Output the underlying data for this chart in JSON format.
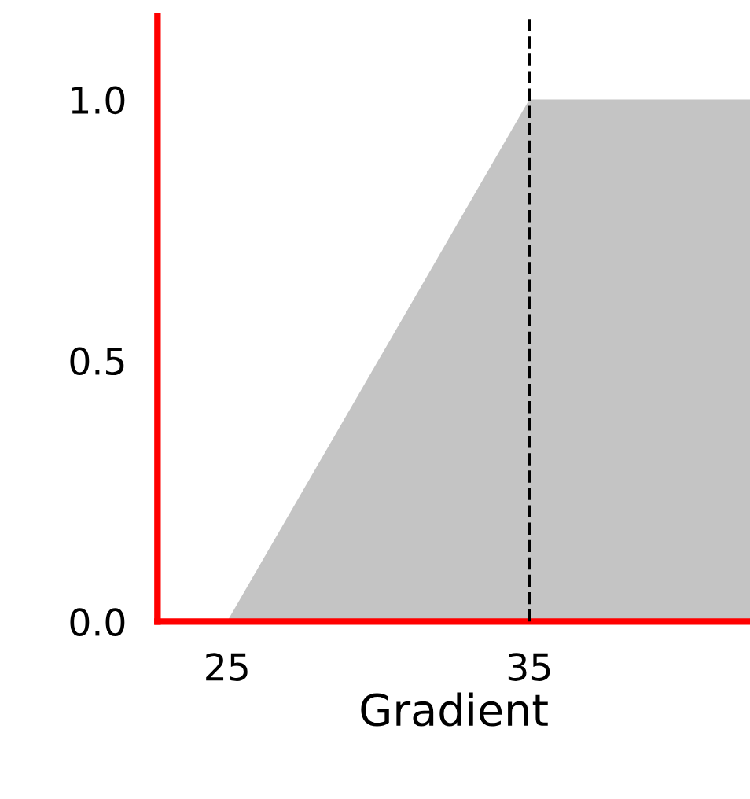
{
  "chart_data": {
    "type": "area",
    "xlabel": "Gradient",
    "x": [
      25,
      35,
      42.3
    ],
    "series": [
      {
        "color": "#c4c4c4",
        "values": [
          0,
          1,
          1
        ]
      }
    ],
    "xlim": [
      22.7,
      42.3
    ],
    "xticks": [
      25,
      35
    ],
    "ylim": [
      0,
      1.16
    ],
    "yticks": [
      {
        "value": 0,
        "label": "0.0"
      },
      {
        "value": 0.5,
        "label": "0.5"
      },
      {
        "value": 1,
        "label": "1.0"
      }
    ],
    "ref_lines": [
      {
        "axis": "x",
        "value": 35,
        "color": "#000000",
        "line_style": "dashed"
      }
    ],
    "grid": false,
    "legend": false
  }
}
